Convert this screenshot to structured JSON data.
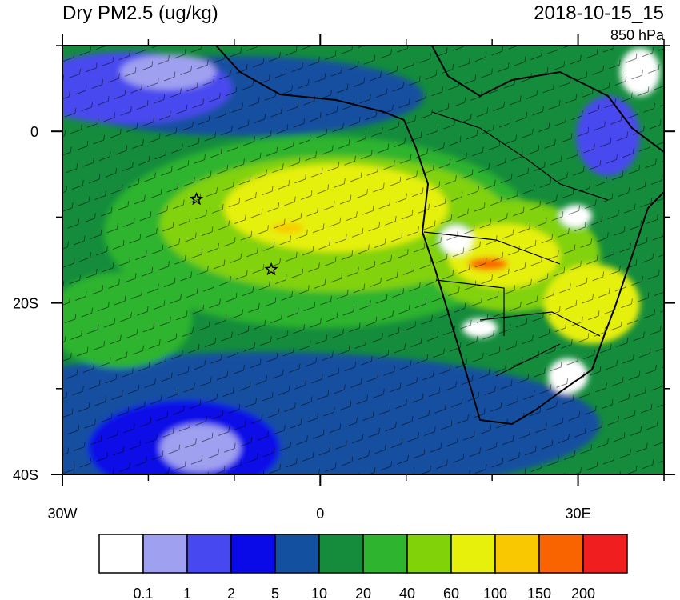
{
  "title": "Dry PM2.5 (ug/kg)",
  "time": "2018-10-15_15",
  "level": "850 hPa",
  "map": {
    "xlim": [
      -30,
      40
    ],
    "ylim": [
      -40,
      10
    ],
    "xticks": [
      {
        "value": -30,
        "label": "30W"
      },
      0,
      {
        "value": 30,
        "label": "30E"
      }
    ],
    "yticks": [
      0,
      {
        "value": -20,
        "label": "20S"
      },
      {
        "value": -40,
        "label": "40S"
      }
    ],
    "x_minor_ticks": [
      -20,
      -10,
      10,
      20,
      40
    ],
    "y_minor_ticks": [
      10,
      -10,
      -30
    ],
    "markers": {
      "lon": [
        -14.4,
        -5.7
      ],
      "lat": [
        -7.9,
        -16.1
      ]
    }
  },
  "colorbar": {
    "levels": [
      0.1,
      1,
      2,
      5,
      10,
      20,
      40,
      60,
      100,
      150,
      200
    ],
    "colors": [
      "#ffffff",
      "#a0a0f0",
      "#4848f0",
      "#0a0ae8",
      "#1450a0",
      "#148c3c",
      "#2eb42e",
      "#82d20a",
      "#e6f00a",
      "#fac800",
      "#fa6400",
      "#f01e1e"
    ]
  }
}
